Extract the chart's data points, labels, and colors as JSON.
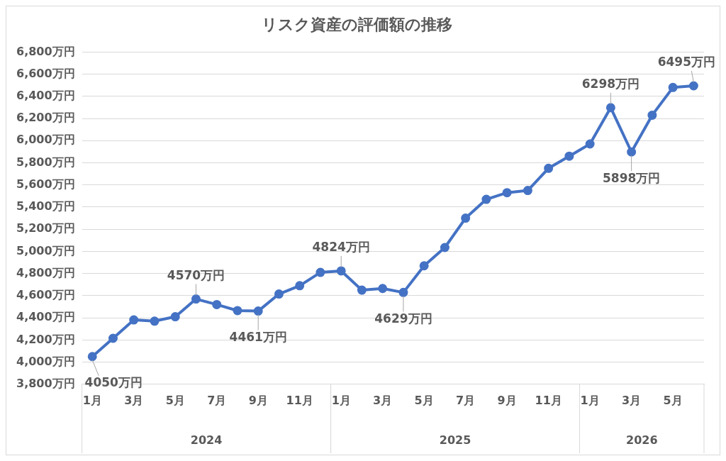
{
  "chart_data": {
    "type": "line",
    "title": "リスク資産の評価額の推移",
    "categories": [
      "1月",
      null,
      "3月",
      null,
      "5月",
      null,
      "7月",
      null,
      "9月",
      null,
      "11月",
      null,
      "1月",
      null,
      "3月",
      null,
      "5月",
      null,
      "7月",
      null,
      "9月",
      null,
      "11月",
      null,
      "1月",
      null,
      "3月",
      null,
      "5月",
      null
    ],
    "series": [
      {
        "color": "#4472c4",
        "values": [
          4050,
          4215,
          4381,
          4370,
          4410,
          4570,
          4520,
          4465,
          4461,
          4615,
          4690,
          4810,
          4824,
          4650,
          4665,
          4629,
          4870,
          5035,
          5300,
          5470,
          5530,
          5550,
          5750,
          5860,
          5970,
          6298,
          5898,
          6230,
          6480,
          6495
        ],
        "value_labels": [
          "4050万円",
          null,
          null,
          null,
          null,
          "4570万円",
          null,
          null,
          "4461万円",
          null,
          null,
          null,
          "4824万円",
          null,
          null,
          "4629万円",
          null,
          null,
          null,
          null,
          null,
          null,
          null,
          null,
          null,
          "6298万円",
          "5898万円",
          null,
          null,
          "6495万円"
        ]
      }
    ],
    "ylim": [
      3800,
      6800
    ],
    "yticks": [
      {
        "value": 3800,
        "label": "3,800万円"
      },
      {
        "value": 4000,
        "label": "4,000万円"
      },
      {
        "value": 4200,
        "label": "4,200万円"
      },
      {
        "value": 4400,
        "label": "4,400万円"
      },
      {
        "value": 4600,
        "label": "4,600万円"
      },
      {
        "value": 4800,
        "label": "4,800万円"
      },
      {
        "value": 5000,
        "label": "5,000万円"
      },
      {
        "value": 5200,
        "label": "5,200万円"
      },
      {
        "value": 5400,
        "label": "5,400万円"
      },
      {
        "value": 5600,
        "label": "5,600万円"
      },
      {
        "value": 5800,
        "label": "5,800万円"
      },
      {
        "value": 6000,
        "label": "6,000万円"
      },
      {
        "value": 6200,
        "label": "6,200万円"
      },
      {
        "value": 6400,
        "label": "6,400万円"
      },
      {
        "value": 6600,
        "label": "6,600万円"
      },
      {
        "value": 6800,
        "label": "6,800万円"
      }
    ],
    "annotations": [
      "2024",
      "2025",
      "2026"
    ],
    "grid": "y",
    "legend": false,
    "marker": "circle",
    "line_style": "solid"
  }
}
